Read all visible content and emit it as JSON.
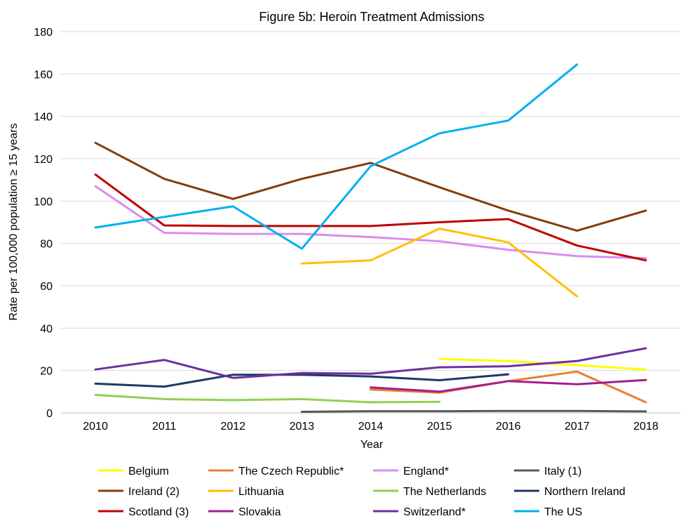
{
  "chart_data": {
    "type": "line",
    "title": "Figure 5b: Heroin Treatment Admissions",
    "xlabel": "Year",
    "ylabel": "Rate per 100,000 population ≥ 15 years",
    "ylim": [
      0,
      180
    ],
    "yticks": [
      0,
      20,
      40,
      60,
      80,
      100,
      120,
      140,
      160,
      180
    ],
    "categories": [
      "2010",
      "2011",
      "2012",
      "2013",
      "2014",
      "2015",
      "2016",
      "2017",
      "2018"
    ],
    "grid": true,
    "legend_position": "bottom",
    "series": [
      {
        "name": "Belgium",
        "color": "#FFFF00",
        "values": [
          null,
          null,
          null,
          null,
          null,
          25.5,
          24.5,
          22.5,
          20.5
        ]
      },
      {
        "name": "The Czech Republic*",
        "color": "#ED7D31",
        "values": [
          null,
          null,
          null,
          null,
          11,
          9.5,
          15,
          19.5,
          5
        ]
      },
      {
        "name": "England*",
        "color": "#D98CF0",
        "values": [
          107,
          85,
          84.5,
          84.5,
          83,
          81,
          77,
          74,
          73
        ]
      },
      {
        "name": "Italy (1)",
        "color": "#595959",
        "values": [
          null,
          null,
          null,
          0.5,
          0.8,
          0.8,
          0.9,
          0.9,
          0.7
        ]
      },
      {
        "name": "Ireland (2)",
        "color": "#843C0C",
        "values": [
          127.5,
          110.5,
          101,
          110.5,
          118,
          106.5,
          95.5,
          86,
          95.5
        ]
      },
      {
        "name": "Lithuania",
        "color": "#FFC000",
        "values": [
          null,
          null,
          null,
          70.5,
          72,
          87,
          80.5,
          55,
          null
        ]
      },
      {
        "name": "The Netherlands",
        "color": "#92D050",
        "values": [
          8.5,
          6.5,
          6,
          6.5,
          5,
          5.2,
          null,
          null,
          null
        ]
      },
      {
        "name": "Northern Ireland",
        "color": "#203864",
        "values": [
          13.8,
          12.4,
          18,
          18,
          17.2,
          15.4,
          18.2,
          null,
          null
        ]
      },
      {
        "name": "Scotland (3)",
        "color": "#C00000",
        "values": [
          112.5,
          88.5,
          88.2,
          88.2,
          88.2,
          90,
          91.5,
          79,
          72
        ]
      },
      {
        "name": "Slovakia",
        "color": "#A0208C",
        "values": [
          null,
          null,
          null,
          null,
          12,
          10,
          15,
          13.5,
          15.5
        ]
      },
      {
        "name": "Switzerland*",
        "color": "#7030A0",
        "values": [
          20.5,
          25,
          16.5,
          18.8,
          18.5,
          21.5,
          22,
          24.5,
          30.5
        ]
      },
      {
        "name": "The US",
        "color": "#00B0F0",
        "values": [
          87.5,
          null,
          97.5,
          77.5,
          116.5,
          132,
          138,
          164.5,
          null
        ]
      }
    ]
  }
}
